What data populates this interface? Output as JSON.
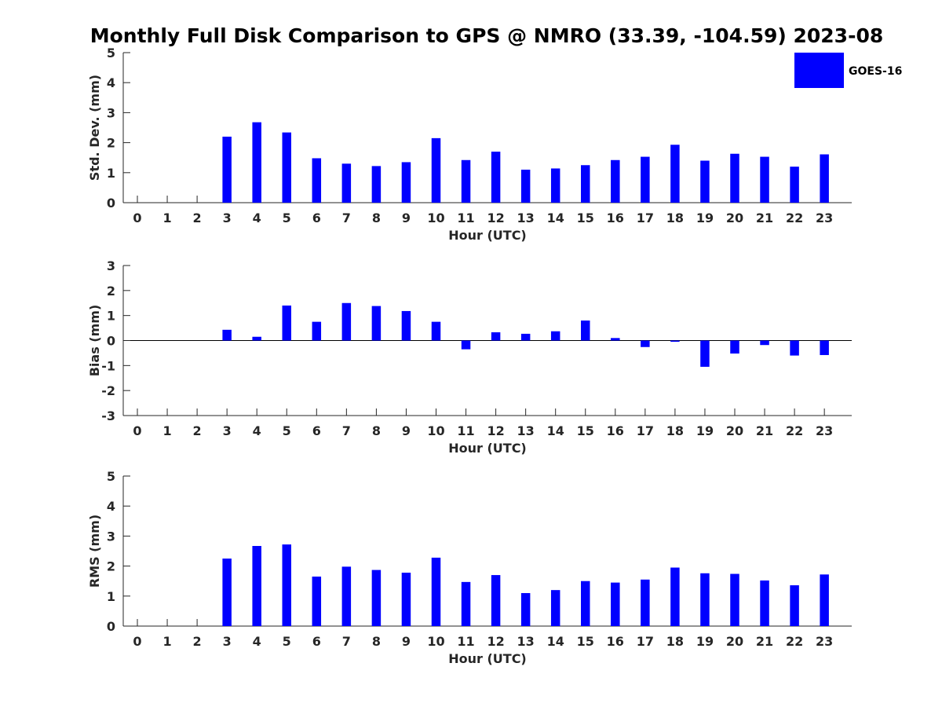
{
  "title": "Monthly Full Disk Comparison to GPS @ NMRO (33.39, -104.59) 2023-08",
  "legend": {
    "label": "GOES-16",
    "color": "#0000ff"
  },
  "chart_data": [
    {
      "type": "bar",
      "xlabel": "Hour (UTC)",
      "ylabel": "Std. Dev. (mm)",
      "ylim": [
        0,
        5
      ],
      "yticks": [
        "0",
        "1",
        "2",
        "3",
        "4",
        "5"
      ],
      "categories": [
        "0",
        "1",
        "2",
        "3",
        "4",
        "5",
        "6",
        "7",
        "8",
        "9",
        "10",
        "11",
        "12",
        "13",
        "14",
        "15",
        "16",
        "17",
        "18",
        "19",
        "20",
        "21",
        "22",
        "23"
      ],
      "series": [
        {
          "name": "GOES-16",
          "values": [
            null,
            null,
            null,
            2.2,
            2.68,
            2.34,
            1.48,
            1.3,
            1.22,
            1.35,
            2.15,
            1.42,
            1.7,
            1.1,
            1.14,
            1.25,
            1.42,
            1.53,
            1.93,
            1.4,
            1.63,
            1.53,
            1.2,
            1.61
          ]
        }
      ]
    },
    {
      "type": "bar",
      "xlabel": "Hour (UTC)",
      "ylabel": "Bias (mm)",
      "ylim": [
        -3,
        3
      ],
      "yticks": [
        "-3",
        "-2",
        "-1",
        "0",
        "1",
        "2",
        "3"
      ],
      "categories": [
        "0",
        "1",
        "2",
        "3",
        "4",
        "5",
        "6",
        "7",
        "8",
        "9",
        "10",
        "11",
        "12",
        "13",
        "14",
        "15",
        "16",
        "17",
        "18",
        "19",
        "20",
        "21",
        "22",
        "23"
      ],
      "series": [
        {
          "name": "GOES-16",
          "values": [
            null,
            null,
            null,
            0.43,
            0.15,
            1.4,
            0.75,
            1.5,
            1.38,
            1.18,
            0.75,
            -0.35,
            0.33,
            0.27,
            0.37,
            0.8,
            0.1,
            -0.26,
            -0.05,
            -1.05,
            -0.52,
            -0.18,
            -0.6,
            -0.58
          ]
        }
      ]
    },
    {
      "type": "bar",
      "xlabel": "Hour (UTC)",
      "ylabel": "RMS (mm)",
      "ylim": [
        0,
        5
      ],
      "yticks": [
        "0",
        "1",
        "2",
        "3",
        "4",
        "5"
      ],
      "categories": [
        "0",
        "1",
        "2",
        "3",
        "4",
        "5",
        "6",
        "7",
        "8",
        "9",
        "10",
        "11",
        "12",
        "13",
        "14",
        "15",
        "16",
        "17",
        "18",
        "19",
        "20",
        "21",
        "22",
        "23"
      ],
      "series": [
        {
          "name": "GOES-16",
          "values": [
            null,
            null,
            null,
            2.25,
            2.67,
            2.72,
            1.65,
            1.98,
            1.87,
            1.78,
            2.28,
            1.47,
            1.7,
            1.1,
            1.2,
            1.5,
            1.45,
            1.55,
            1.95,
            1.76,
            1.74,
            1.52,
            1.36,
            1.72
          ]
        }
      ]
    }
  ]
}
